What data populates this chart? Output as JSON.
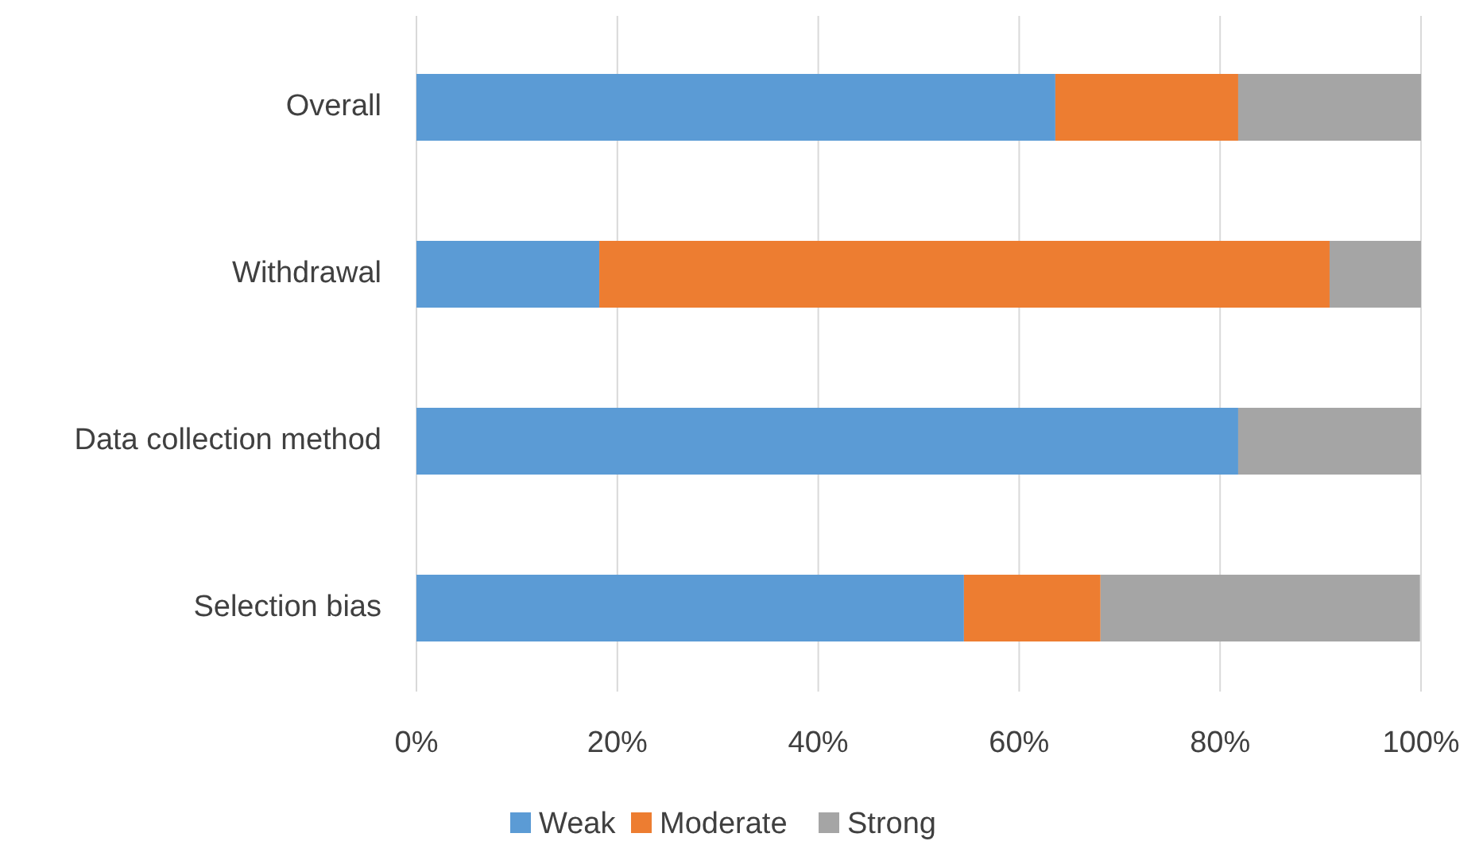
{
  "chart_data": {
    "type": "bar",
    "orientation": "horizontal",
    "stacked": true,
    "categories": [
      "Overall",
      "Withdrawal",
      "Data collection method",
      "Selection bias"
    ],
    "series": [
      {
        "name": "Weak",
        "color": "#5b9bd5",
        "values": [
          63.6,
          18.2,
          81.8,
          54.5
        ]
      },
      {
        "name": "Moderate",
        "color": "#ed7d31",
        "values": [
          18.2,
          72.7,
          0,
          13.6
        ]
      },
      {
        "name": "Strong",
        "color": "#a5a5a5",
        "values": [
          18.2,
          9.1,
          18.2,
          31.8
        ]
      }
    ],
    "xlim": [
      0,
      100
    ],
    "xticks": [
      {
        "value": 0,
        "label": "0%"
      },
      {
        "value": 20,
        "label": "20%"
      },
      {
        "value": 40,
        "label": "40%"
      },
      {
        "value": 60,
        "label": "60%"
      },
      {
        "value": 80,
        "label": "80%"
      },
      {
        "value": 100,
        "label": "100%"
      }
    ],
    "grid": "x",
    "legend": "bottom"
  }
}
